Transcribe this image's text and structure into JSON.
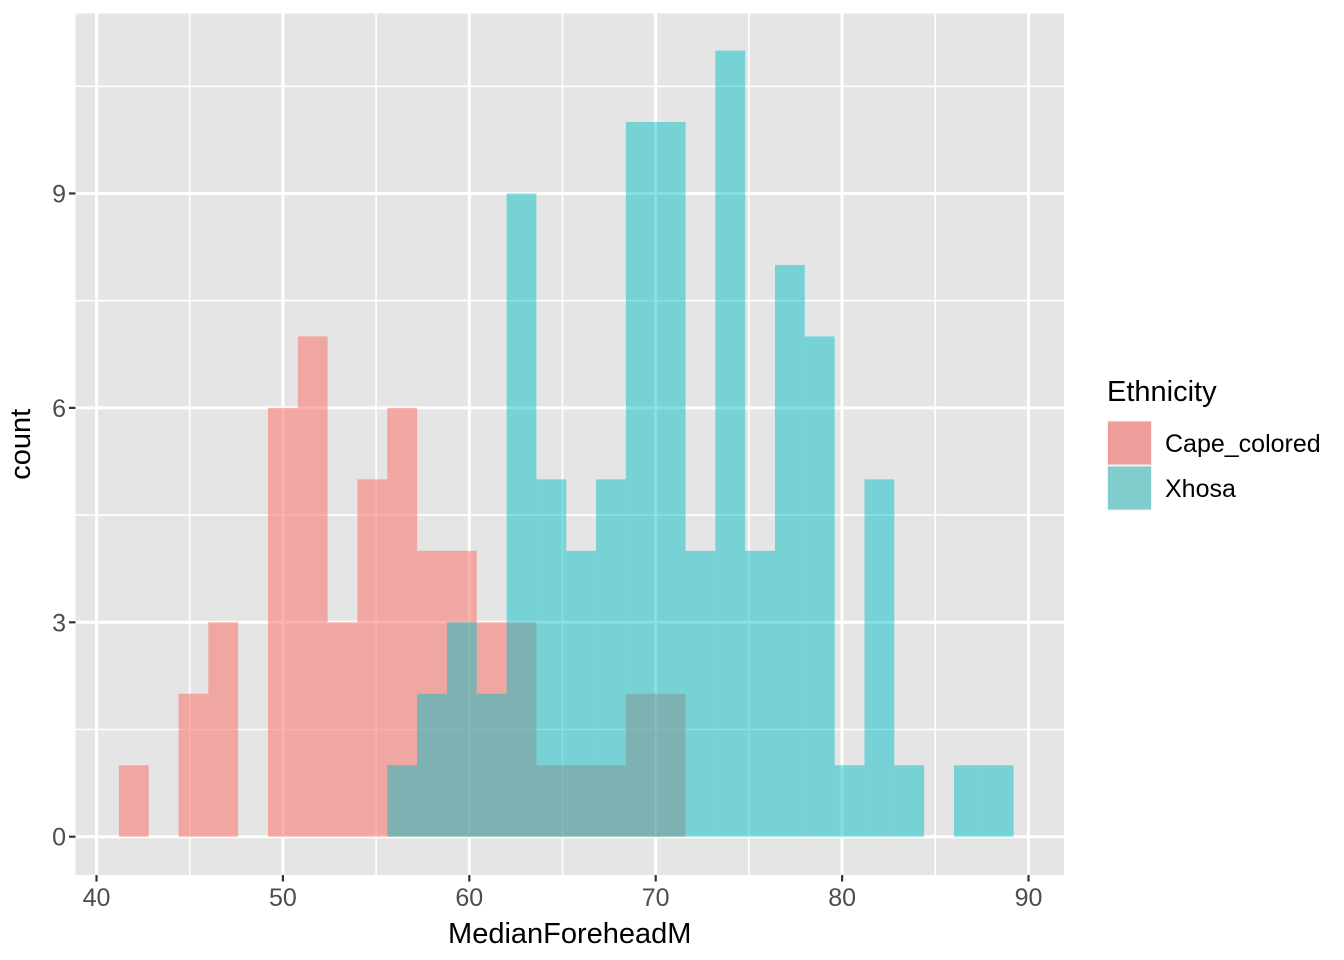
{
  "chart_data": {
    "type": "histogram",
    "title": "",
    "xlabel": "MedianForeheadM",
    "ylabel": "count",
    "x_ticks": [
      40,
      50,
      60,
      70,
      80,
      90
    ],
    "x_minor_gridlines": [
      45,
      55,
      65,
      75,
      85
    ],
    "y_ticks": [
      0,
      3,
      6,
      9
    ],
    "y_minor_gridlines": [
      1.5,
      4.5,
      7.5,
      10.5
    ],
    "xlim": [
      38.9,
      92.0
    ],
    "ylim": [
      -0.55,
      11.55
    ],
    "grid": true,
    "legend_position": "right",
    "bins": {
      "start": 41.2,
      "width": 1.6,
      "count": 30
    },
    "series": [
      {
        "name": "Cape_colored",
        "fill": "#F8766D",
        "alpha": 0.57,
        "legend_swatch": "#ED9D9A",
        "counts": [
          1,
          0,
          2,
          3,
          0,
          6,
          7,
          3,
          5,
          6,
          4,
          4,
          3,
          3,
          1,
          1,
          1,
          2,
          2,
          0,
          0,
          0,
          0,
          0,
          0,
          0,
          0,
          0,
          0,
          0
        ]
      },
      {
        "name": "Xhosa",
        "fill": "#00BFC4",
        "alpha": 0.48,
        "legend_swatch": "#80CDCE",
        "counts": [
          0,
          0,
          0,
          0,
          0,
          0,
          0,
          0,
          0,
          1,
          2,
          3,
          2,
          9,
          5,
          4,
          5,
          10,
          10,
          4,
          11,
          4,
          8,
          7,
          1,
          5,
          1,
          0,
          1,
          1
        ]
      }
    ],
    "legend": {
      "title": "Ethnicity",
      "entries": [
        "Cape_colored",
        "Xhosa"
      ]
    },
    "colors": {
      "panel_background": "#E5E5E5",
      "gridline": "#FFFFFF",
      "tick_label_text": "#4D4D4D",
      "title_text": "#000000",
      "tick_mark": "#333333",
      "legend_key_background": "#F2F2F2",
      "page_background": "#FFFFFF"
    }
  }
}
